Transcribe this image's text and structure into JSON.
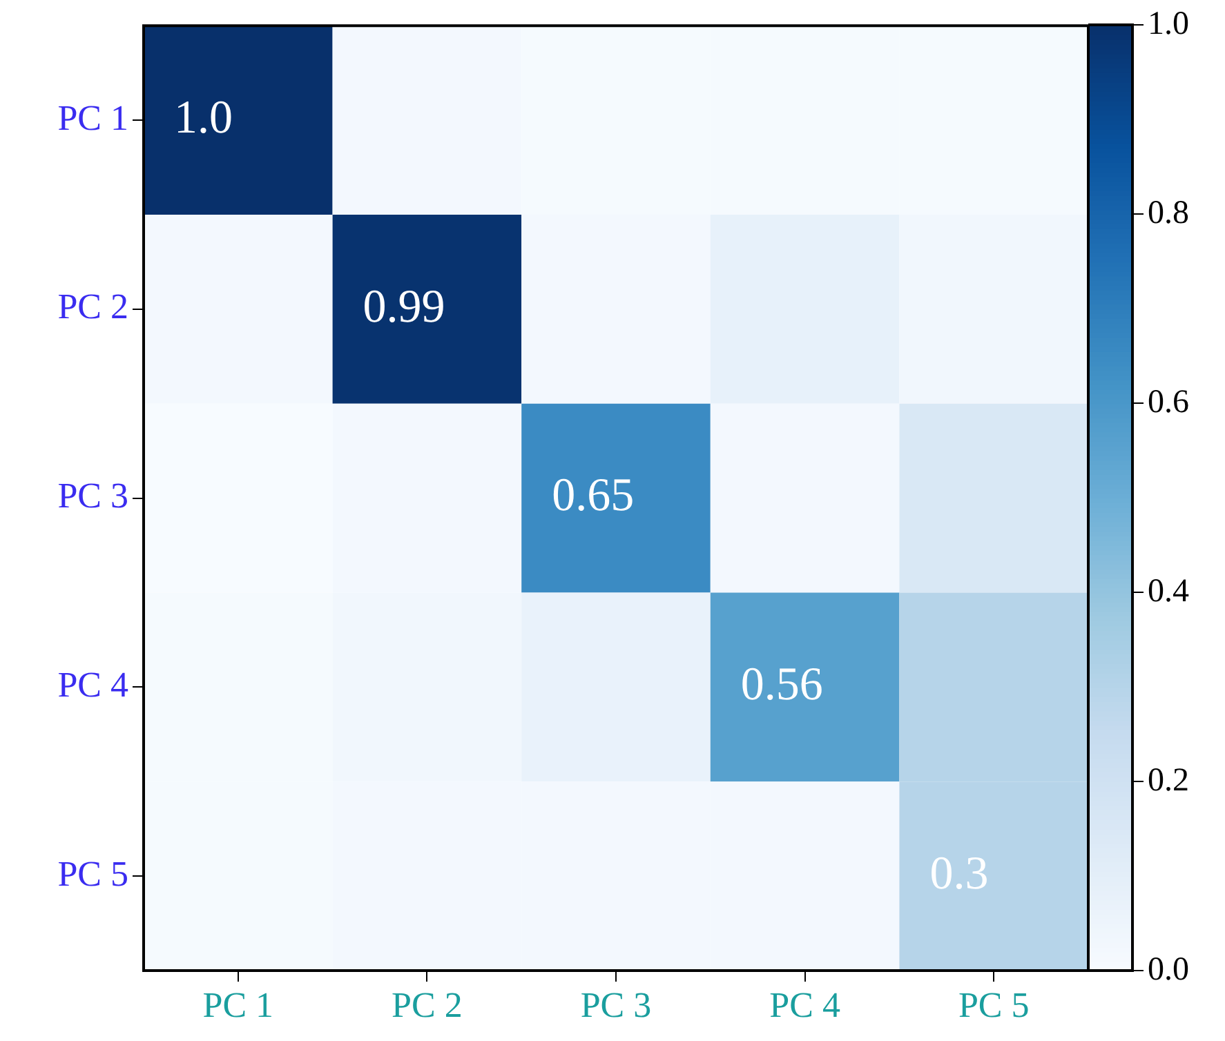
{
  "chart_data": {
    "type": "heatmap",
    "categories": [
      "PC 1",
      "PC 2",
      "PC 3",
      "PC 4",
      "PC 5"
    ],
    "y_categories": [
      "PC 1",
      "PC 2",
      "PC 3",
      "PC 4",
      "PC 5"
    ],
    "cells": [
      [
        1.0,
        0.02,
        0.01,
        0.01,
        0.01
      ],
      [
        0.02,
        0.99,
        0.02,
        0.08,
        0.03
      ],
      [
        0.0,
        0.02,
        0.65,
        0.02,
        0.15
      ],
      [
        0.01,
        0.03,
        0.07,
        0.56,
        0.3
      ],
      [
        0.01,
        0.02,
        0.02,
        0.02,
        0.3
      ]
    ],
    "cell_labels": [
      [
        "1.0",
        null,
        null,
        null,
        null
      ],
      [
        null,
        "0.99",
        null,
        null,
        null
      ],
      [
        null,
        null,
        "0.65",
        null,
        null
      ],
      [
        null,
        null,
        null,
        "0.56",
        null
      ],
      [
        null,
        null,
        null,
        null,
        "0.3"
      ]
    ],
    "clim": [
      0,
      1
    ],
    "cticks": [
      {
        "value": 0,
        "label": "0.0"
      },
      {
        "value": 0.2,
        "label": "0.2"
      },
      {
        "value": 0.4,
        "label": "0.4"
      },
      {
        "value": 0.6,
        "label": "0.6"
      },
      {
        "value": 0.8,
        "label": "0.8"
      },
      {
        "value": 1,
        "label": "1.0"
      }
    ],
    "grid": false,
    "legend": false
  }
}
